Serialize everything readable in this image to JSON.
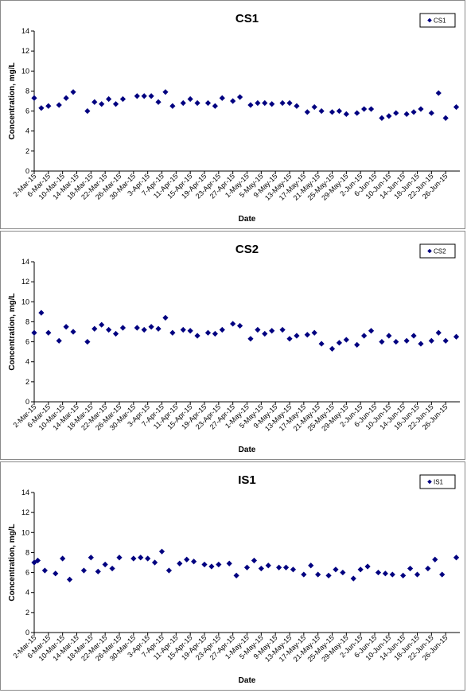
{
  "chart_data": [
    {
      "type": "scatter",
      "title": "CS1",
      "xlabel": "Date",
      "ylabel": "Concentration, mg/L",
      "ylim": [
        0,
        14
      ],
      "yticks": [
        0,
        2,
        4,
        6,
        8,
        10,
        12,
        14
      ],
      "xlim": [
        "2015-03-02",
        "2015-06-30"
      ],
      "xticks": [
        "2-Mar-15",
        "6-Mar-15",
        "10-Mar-15",
        "14-Mar-15",
        "18-Mar-15",
        "22-Mar-15",
        "26-Mar-15",
        "30-Mar-15",
        "3-Apr-15",
        "7-Apr-15",
        "11-Apr-15",
        "15-Apr-15",
        "19-Apr-15",
        "23-Apr-15",
        "27-Apr-15",
        "1-May-15",
        "5-May-15",
        "9-May-15",
        "13-May-15",
        "17-May-15",
        "21-May-15",
        "25-May-15",
        "29-May-15",
        "2-Jun-15",
        "6-Jun-15",
        "10-Jun-15",
        "14-Jun-15",
        "18-Jun-15",
        "22-Jun-15",
        "26-Jun-15"
      ],
      "grid": false,
      "legend_position": "top-right",
      "marker": "diamond",
      "marker_color": "#000080",
      "series": [
        {
          "name": "CS1",
          "points": [
            [
              "2015-03-02",
              7.3
            ],
            [
              "2015-03-04",
              6.3
            ],
            [
              "2015-03-06",
              6.5
            ],
            [
              "2015-03-09",
              6.6
            ],
            [
              "2015-03-11",
              7.3
            ],
            [
              "2015-03-13",
              7.9
            ],
            [
              "2015-03-17",
              6.0
            ],
            [
              "2015-03-19",
              6.9
            ],
            [
              "2015-03-21",
              6.7
            ],
            [
              "2015-03-23",
              7.2
            ],
            [
              "2015-03-25",
              6.7
            ],
            [
              "2015-03-27",
              7.2
            ],
            [
              "2015-03-31",
              7.5
            ],
            [
              "2015-04-02",
              7.5
            ],
            [
              "2015-04-04",
              7.5
            ],
            [
              "2015-04-06",
              6.9
            ],
            [
              "2015-04-08",
              7.9
            ],
            [
              "2015-04-10",
              6.5
            ],
            [
              "2015-04-13",
              6.8
            ],
            [
              "2015-04-15",
              7.2
            ],
            [
              "2015-04-17",
              6.8
            ],
            [
              "2015-04-20",
              6.8
            ],
            [
              "2015-04-22",
              6.5
            ],
            [
              "2015-04-24",
              7.3
            ],
            [
              "2015-04-27",
              7.0
            ],
            [
              "2015-04-29",
              7.4
            ],
            [
              "2015-05-02",
              6.6
            ],
            [
              "2015-05-04",
              6.8
            ],
            [
              "2015-05-06",
              6.8
            ],
            [
              "2015-05-08",
              6.7
            ],
            [
              "2015-05-11",
              6.8
            ],
            [
              "2015-05-13",
              6.8
            ],
            [
              "2015-05-15",
              6.5
            ],
            [
              "2015-05-18",
              5.9
            ],
            [
              "2015-05-20",
              6.4
            ],
            [
              "2015-05-22",
              6.0
            ],
            [
              "2015-05-25",
              5.9
            ],
            [
              "2015-05-27",
              6.0
            ],
            [
              "2015-05-29",
              5.7
            ],
            [
              "2015-06-01",
              5.8
            ],
            [
              "2015-06-03",
              6.2
            ],
            [
              "2015-06-05",
              6.2
            ],
            [
              "2015-06-08",
              5.3
            ],
            [
              "2015-06-10",
              5.5
            ],
            [
              "2015-06-12",
              5.8
            ],
            [
              "2015-06-15",
              5.7
            ],
            [
              "2015-06-17",
              5.9
            ],
            [
              "2015-06-19",
              6.2
            ],
            [
              "2015-06-22",
              5.8
            ],
            [
              "2015-06-24",
              7.8
            ],
            [
              "2015-06-26",
              5.3
            ],
            [
              "2015-06-29",
              6.4
            ]
          ]
        }
      ]
    },
    {
      "type": "scatter",
      "title": "CS2",
      "xlabel": "Date",
      "ylabel": "Concentration, mg/L",
      "ylim": [
        0,
        14
      ],
      "yticks": [
        0,
        2,
        4,
        6,
        8,
        10,
        12,
        14
      ],
      "xlim": [
        "2015-03-02",
        "2015-06-30"
      ],
      "xticks": [
        "2-Mar-15",
        "6-Mar-15",
        "10-Mar-15",
        "14-Mar-15",
        "18-Mar-15",
        "22-Mar-15",
        "26-Mar-15",
        "30-Mar-15",
        "3-Apr-15",
        "7-Apr-15",
        "11-Apr-15",
        "15-Apr-15",
        "19-Apr-15",
        "23-Apr-15",
        "27-Apr-15",
        "1-May-15",
        "5-May-15",
        "9-May-15",
        "13-May-15",
        "17-May-15",
        "21-May-15",
        "25-May-15",
        "29-May-15",
        "2-Jun-15",
        "6-Jun-15",
        "10-Jun-15",
        "14-Jun-15",
        "18-Jun-15",
        "22-Jun-15",
        "26-Jun-15"
      ],
      "grid": false,
      "legend_position": "top-right",
      "marker": "diamond",
      "marker_color": "#000080",
      "series": [
        {
          "name": "CS2",
          "points": [
            [
              "2015-03-02",
              6.9
            ],
            [
              "2015-03-04",
              8.9
            ],
            [
              "2015-03-06",
              6.9
            ],
            [
              "2015-03-09",
              6.1
            ],
            [
              "2015-03-11",
              7.5
            ],
            [
              "2015-03-13",
              7.0
            ],
            [
              "2015-03-17",
              6.0
            ],
            [
              "2015-03-19",
              7.3
            ],
            [
              "2015-03-21",
              7.7
            ],
            [
              "2015-03-23",
              7.2
            ],
            [
              "2015-03-25",
              6.8
            ],
            [
              "2015-03-27",
              7.4
            ],
            [
              "2015-03-31",
              7.4
            ],
            [
              "2015-04-02",
              7.2
            ],
            [
              "2015-04-04",
              7.5
            ],
            [
              "2015-04-06",
              7.3
            ],
            [
              "2015-04-08",
              8.4
            ],
            [
              "2015-04-10",
              6.9
            ],
            [
              "2015-04-13",
              7.2
            ],
            [
              "2015-04-15",
              7.1
            ],
            [
              "2015-04-17",
              6.6
            ],
            [
              "2015-04-20",
              6.9
            ],
            [
              "2015-04-22",
              6.8
            ],
            [
              "2015-04-24",
              7.2
            ],
            [
              "2015-04-27",
              7.8
            ],
            [
              "2015-04-29",
              7.6
            ],
            [
              "2015-05-02",
              6.3
            ],
            [
              "2015-05-04",
              7.2
            ],
            [
              "2015-05-06",
              6.8
            ],
            [
              "2015-05-08",
              7.1
            ],
            [
              "2015-05-11",
              7.2
            ],
            [
              "2015-05-13",
              6.3
            ],
            [
              "2015-05-15",
              6.6
            ],
            [
              "2015-05-18",
              6.7
            ],
            [
              "2015-05-20",
              6.9
            ],
            [
              "2015-05-22",
              5.8
            ],
            [
              "2015-05-25",
              5.3
            ],
            [
              "2015-05-27",
              5.9
            ],
            [
              "2015-05-29",
              6.2
            ],
            [
              "2015-06-01",
              5.7
            ],
            [
              "2015-06-03",
              6.6
            ],
            [
              "2015-06-05",
              7.1
            ],
            [
              "2015-06-08",
              6.0
            ],
            [
              "2015-06-10",
              6.6
            ],
            [
              "2015-06-12",
              6.0
            ],
            [
              "2015-06-15",
              6.1
            ],
            [
              "2015-06-17",
              6.6
            ],
            [
              "2015-06-19",
              5.8
            ],
            [
              "2015-06-22",
              6.1
            ],
            [
              "2015-06-24",
              6.9
            ],
            [
              "2015-06-26",
              6.1
            ],
            [
              "2015-06-29",
              6.5
            ]
          ]
        }
      ]
    },
    {
      "type": "scatter",
      "title": "IS1",
      "xlabel": "Date",
      "ylabel": "Concentration, mg/L",
      "ylim": [
        0,
        14
      ],
      "yticks": [
        0,
        2,
        4,
        6,
        8,
        10,
        12,
        14
      ],
      "xlim": [
        "2015-03-02",
        "2015-06-30"
      ],
      "xticks": [
        "2-Mar-15",
        "6-Mar-15",
        "10-Mar-15",
        "14-Mar-15",
        "18-Mar-15",
        "22-Mar-15",
        "26-Mar-15",
        "30-Mar-15",
        "3-Apr-15",
        "7-Apr-15",
        "11-Apr-15",
        "15-Apr-15",
        "19-Apr-15",
        "23-Apr-15",
        "27-Apr-15",
        "1-May-15",
        "5-May-15",
        "9-May-15",
        "13-May-15",
        "17-May-15",
        "21-May-15",
        "25-May-15",
        "29-May-15",
        "2-Jun-15",
        "6-Jun-15",
        "10-Jun-15",
        "14-Jun-15",
        "18-Jun-15",
        "22-Jun-15",
        "26-Jun-15"
      ],
      "grid": false,
      "legend_position": "top-right",
      "marker": "diamond",
      "marker_color": "#000080",
      "series": [
        {
          "name": "IS1",
          "points": [
            [
              "2015-03-02",
              7.0
            ],
            [
              "2015-03-03",
              7.2
            ],
            [
              "2015-03-05",
              6.2
            ],
            [
              "2015-03-08",
              5.9
            ],
            [
              "2015-03-10",
              7.4
            ],
            [
              "2015-03-12",
              5.3
            ],
            [
              "2015-03-16",
              6.2
            ],
            [
              "2015-03-18",
              7.5
            ],
            [
              "2015-03-20",
              6.1
            ],
            [
              "2015-03-22",
              6.8
            ],
            [
              "2015-03-24",
              6.4
            ],
            [
              "2015-03-26",
              7.5
            ],
            [
              "2015-03-30",
              7.4
            ],
            [
              "2015-04-01",
              7.5
            ],
            [
              "2015-04-03",
              7.4
            ],
            [
              "2015-04-05",
              7.0
            ],
            [
              "2015-04-07",
              8.1
            ],
            [
              "2015-04-09",
              6.2
            ],
            [
              "2015-04-12",
              6.9
            ],
            [
              "2015-04-14",
              7.3
            ],
            [
              "2015-04-16",
              7.1
            ],
            [
              "2015-04-19",
              6.8
            ],
            [
              "2015-04-21",
              6.6
            ],
            [
              "2015-04-23",
              6.8
            ],
            [
              "2015-04-26",
              6.9
            ],
            [
              "2015-04-28",
              5.7
            ],
            [
              "2015-05-01",
              6.5
            ],
            [
              "2015-05-03",
              7.2
            ],
            [
              "2015-05-05",
              6.4
            ],
            [
              "2015-05-07",
              6.7
            ],
            [
              "2015-05-10",
              6.5
            ],
            [
              "2015-05-12",
              6.5
            ],
            [
              "2015-05-14",
              6.3
            ],
            [
              "2015-05-17",
              5.8
            ],
            [
              "2015-05-19",
              6.7
            ],
            [
              "2015-05-21",
              5.8
            ],
            [
              "2015-05-24",
              5.7
            ],
            [
              "2015-05-26",
              6.3
            ],
            [
              "2015-05-28",
              6.0
            ],
            [
              "2015-05-31",
              5.4
            ],
            [
              "2015-06-02",
              6.3
            ],
            [
              "2015-06-04",
              6.6
            ],
            [
              "2015-06-07",
              6.0
            ],
            [
              "2015-06-09",
              5.9
            ],
            [
              "2015-06-11",
              5.8
            ],
            [
              "2015-06-14",
              5.7
            ],
            [
              "2015-06-16",
              6.4
            ],
            [
              "2015-06-18",
              5.8
            ],
            [
              "2015-06-21",
              6.4
            ],
            [
              "2015-06-23",
              7.3
            ],
            [
              "2015-06-25",
              5.8
            ],
            [
              "2015-06-29",
              7.5
            ]
          ]
        }
      ]
    }
  ]
}
